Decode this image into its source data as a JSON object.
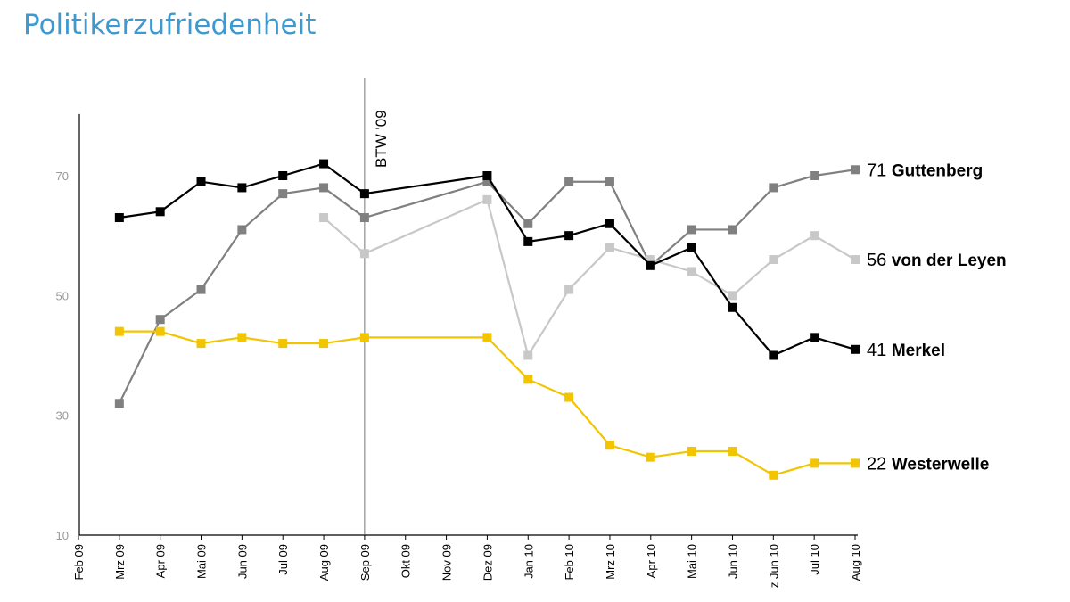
{
  "chart_data": {
    "type": "line",
    "title": "Politikerzufriedenheit",
    "categories": [
      "Feb 09",
      "Mrz 09",
      "Apr 09",
      "Mai 09",
      "Jun 09",
      "Jul 09",
      "Aug 09",
      "Sep 09",
      "Okt 09",
      "Nov 09",
      "Dez 09",
      "Jan 10",
      "Feb 10",
      "Mrz 10",
      "Apr 10",
      "Mai 10",
      "Jun 10",
      "z Jun 10",
      "Jul 10",
      "Aug 10"
    ],
    "ylim": [
      10,
      80
    ],
    "yticks": [
      10,
      30,
      50,
      70
    ],
    "grid": false,
    "annotation": {
      "label": "BTW '09",
      "category": "Sep 09"
    },
    "series": [
      {
        "name": "Guttenberg",
        "end_label": "71",
        "color": "#808080",
        "values": [
          null,
          32,
          46,
          51,
          61,
          67,
          68,
          63,
          null,
          null,
          69,
          62,
          69,
          69,
          55,
          61,
          61,
          68,
          70,
          71
        ]
      },
      {
        "name": "von der Leyen",
        "end_label": "56",
        "color": "#c8c8c8",
        "values": [
          null,
          null,
          null,
          null,
          null,
          null,
          63,
          57,
          null,
          null,
          66,
          40,
          51,
          58,
          56,
          54,
          50,
          56,
          60,
          56
        ]
      },
      {
        "name": "Merkel",
        "end_label": "41",
        "color": "#000000",
        "values": [
          null,
          63,
          64,
          69,
          68,
          70,
          72,
          67,
          null,
          null,
          70,
          59,
          60,
          62,
          55,
          58,
          48,
          40,
          43,
          41
        ]
      },
      {
        "name": "Westerwelle",
        "end_label": "22",
        "color": "#f2c500",
        "values": [
          null,
          44,
          44,
          42,
          43,
          42,
          42,
          43,
          null,
          null,
          43,
          36,
          33,
          25,
          23,
          24,
          24,
          20,
          22,
          22
        ]
      }
    ]
  }
}
